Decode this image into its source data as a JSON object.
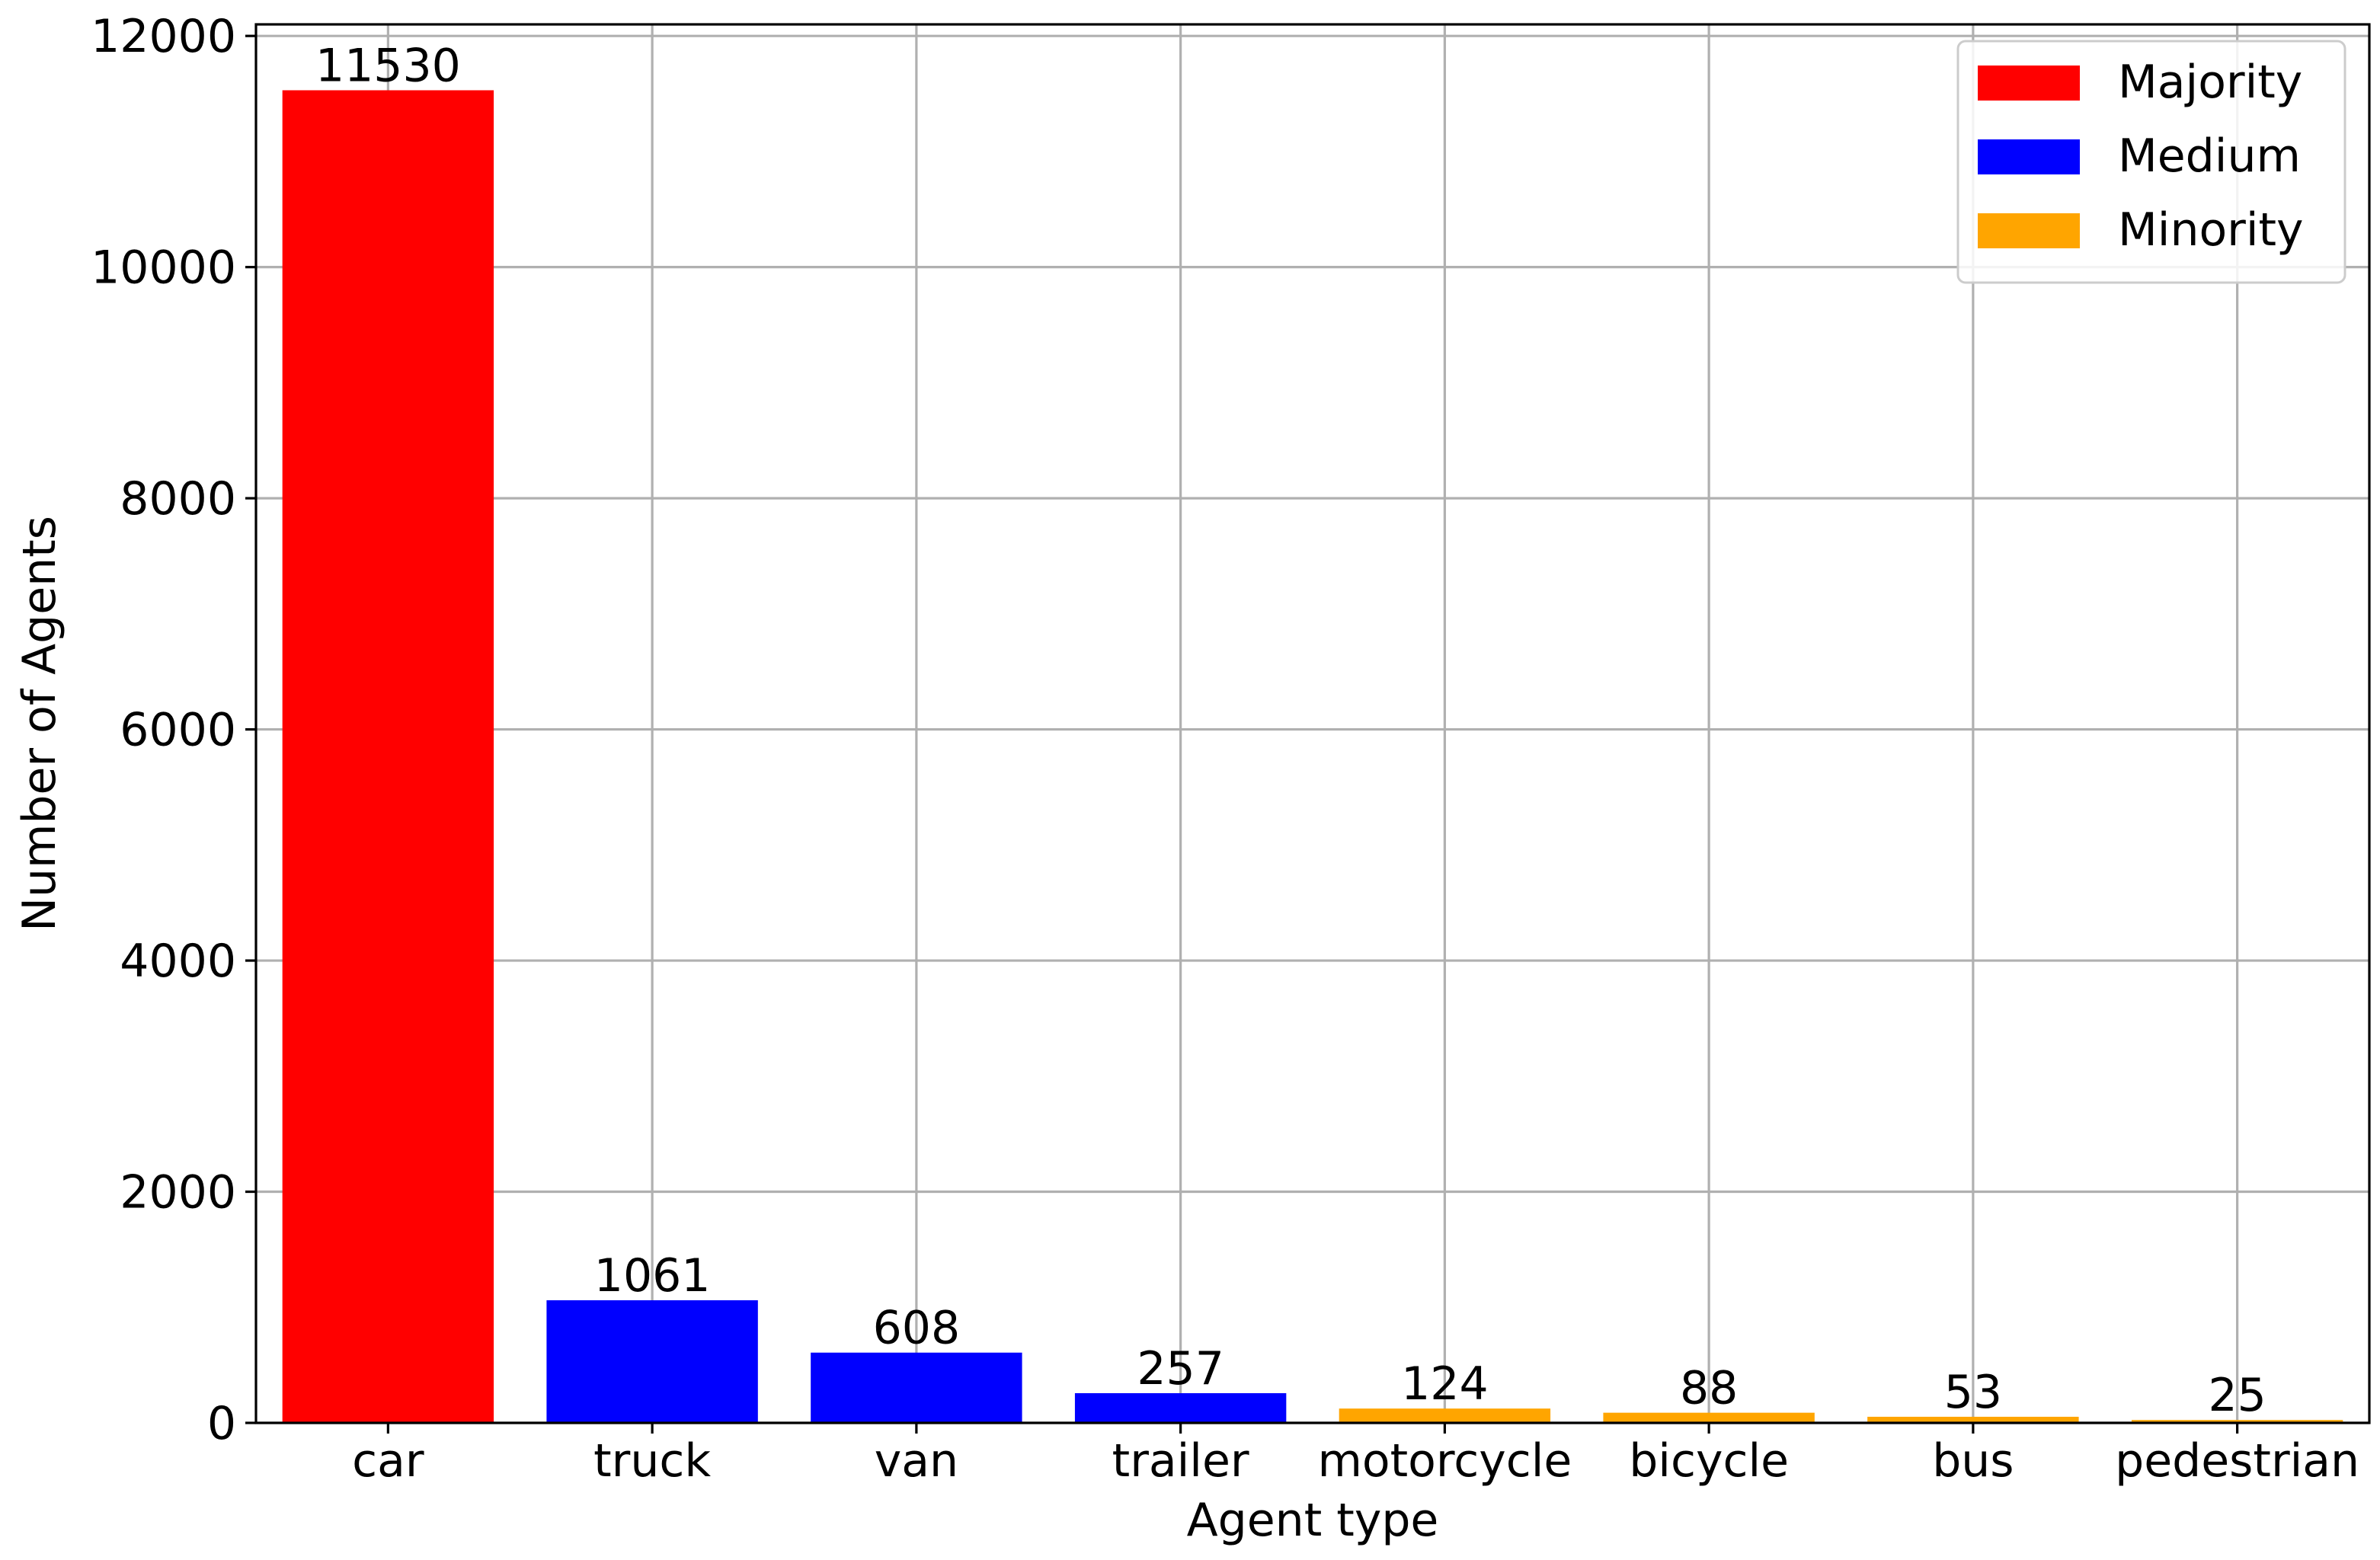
{
  "chart_data": {
    "type": "bar",
    "title": "",
    "xlabel": "Agent type",
    "ylabel": "Number of Agents",
    "categories": [
      "car",
      "truck",
      "van",
      "trailer",
      "motorcycle",
      "bicycle",
      "bus",
      "pedestrian"
    ],
    "values": [
      11530,
      1061,
      608,
      257,
      124,
      88,
      53,
      25
    ],
    "value_labels": [
      "11530",
      "1061",
      "608",
      "257",
      "124",
      "88",
      "53",
      "25"
    ],
    "bar_groups": [
      "Majority",
      "Medium",
      "Medium",
      "Medium",
      "Minority",
      "Minority",
      "Minority",
      "Minority"
    ],
    "groups": [
      {
        "name": "Majority",
        "color": "#ff0000"
      },
      {
        "name": "Medium",
        "color": "#0000ff"
      },
      {
        "name": "Minority",
        "color": "#ffa500"
      }
    ],
    "ylim": [
      0,
      12100
    ],
    "yticks": [
      0,
      2000,
      4000,
      6000,
      8000,
      10000,
      12000
    ],
    "ytick_labels": [
      "0",
      "2000",
      "4000",
      "6000",
      "8000",
      "10000",
      "12000"
    ],
    "grid": true,
    "legend_position": "top-right"
  }
}
